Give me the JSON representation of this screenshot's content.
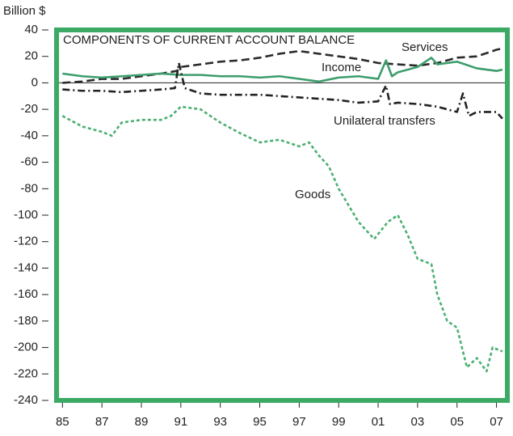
{
  "chart_data": {
    "type": "line",
    "title": "COMPONENTS OF CURRENT ACCOUNT BALANCE",
    "y_label": "Billion $",
    "xlim": [
      1984.7,
      2007.55
    ],
    "xticks": [
      {
        "value": 1985,
        "label": "85"
      },
      {
        "value": 1987,
        "label": "87"
      },
      {
        "value": 1989,
        "label": "89"
      },
      {
        "value": 1991,
        "label": "91"
      },
      {
        "value": 1993,
        "label": "93"
      },
      {
        "value": 1995,
        "label": "95"
      },
      {
        "value": 1997,
        "label": "97"
      },
      {
        "value": 1999,
        "label": "99"
      },
      {
        "value": 2001,
        "label": "01"
      },
      {
        "value": 2003,
        "label": "03"
      },
      {
        "value": 2005,
        "label": "05"
      },
      {
        "value": 2007,
        "label": "07"
      }
    ],
    "ylim": [
      -240,
      40
    ],
    "yticks": [
      40,
      20,
      0,
      -20,
      -40,
      -60,
      -80,
      -100,
      -120,
      -140,
      -160,
      -180,
      -200,
      -220,
      -240
    ],
    "series": [
      {
        "name": "Services",
        "color": "#2b2b2b",
        "dash": "10,5",
        "x": [
          1985,
          1986,
          1987,
          1988,
          1989,
          1990,
          1990.8,
          1991,
          1992,
          1993,
          1994,
          1995,
          1996,
          1997,
          1998,
          1999,
          2000,
          2001,
          2002,
          2003,
          2004,
          2005,
          2006,
          2007,
          2007.3
        ],
        "values": [
          0,
          1,
          3,
          3,
          5,
          7,
          9,
          12,
          14,
          16,
          17,
          19,
          22,
          24,
          22,
          20,
          18,
          15,
          14,
          13,
          15,
          19,
          20,
          25,
          26
        ]
      },
      {
        "name": "Income",
        "color": "#3c9d6d",
        "dash": "",
        "x": [
          1985,
          1986,
          1987,
          1988,
          1989,
          1990,
          1991,
          1992,
          1993,
          1994,
          1995,
          1996,
          1997,
          1998,
          1999,
          2000,
          2001,
          2001.4,
          2001.7,
          2002,
          2003,
          2003.7,
          2004,
          2005,
          2006,
          2007,
          2007.3
        ],
        "values": [
          7,
          5,
          4,
          5,
          6,
          7,
          6,
          6,
          5,
          5,
          4,
          5,
          3,
          1,
          4,
          5,
          3,
          17,
          5,
          8,
          12,
          19,
          14,
          16,
          11,
          9,
          10
        ]
      },
      {
        "name": "Unilateral transfers",
        "color": "#222222",
        "dash": "9,4,2,4",
        "x": [
          1985,
          1986,
          1987,
          1988,
          1989,
          1990,
          1990.7,
          1990.9,
          1991.2,
          1992,
          1993,
          1994,
          1995,
          1996,
          1997,
          1998,
          1999,
          2000,
          2001,
          2001.4,
          2001.6,
          2002,
          2003,
          2004,
          2005,
          2005.3,
          2005.6,
          2006,
          2007,
          2007.3
        ],
        "values": [
          -5,
          -6,
          -6,
          -7,
          -6,
          -5,
          -4,
          15,
          -4,
          -8,
          -9,
          -9,
          -9,
          -10,
          -11,
          -12,
          -13,
          -15,
          -14,
          -2,
          -16,
          -15,
          -16,
          -18,
          -22,
          -8,
          -25,
          -22,
          -22,
          -27
        ]
      },
      {
        "name": "Goods",
        "color": "#4caf72",
        "dash": "4,3",
        "x": [
          1985,
          1986,
          1987,
          1987.5,
          1988,
          1989,
          1990,
          1990.5,
          1991,
          1992,
          1993,
          1994,
          1995,
          1996,
          1997,
          1997.5,
          1998,
          1998.5,
          1999,
          2000,
          2000.8,
          2001.5,
          2002,
          2002.5,
          2003,
          2003.7,
          2004,
          2004.5,
          2005,
          2005.5,
          2006,
          2006.5,
          2006.8,
          2007.3
        ],
        "values": [
          -25,
          -33,
          -37,
          -40,
          -30,
          -28,
          -28,
          -25,
          -18,
          -20,
          -30,
          -38,
          -45,
          -43,
          -48,
          -45,
          -55,
          -63,
          -80,
          -105,
          -118,
          -105,
          -100,
          -115,
          -133,
          -137,
          -160,
          -180,
          -185,
          -215,
          -208,
          -218,
          -200,
          -203
        ]
      }
    ]
  }
}
